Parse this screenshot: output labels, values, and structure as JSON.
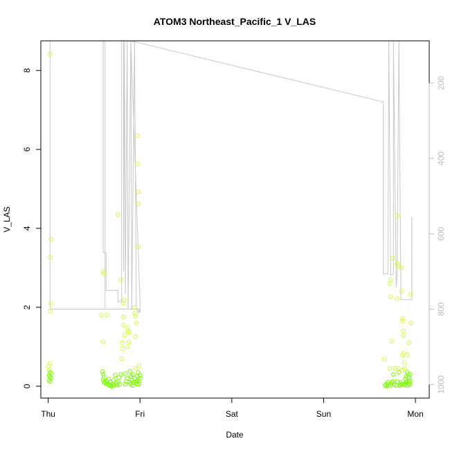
{
  "chart_data": {
    "type": "scatter",
    "title": "ATOM3 Northeast_Pacific_1 V_LAS",
    "xlabel": "Date",
    "ylabel": "V_LAS",
    "x_unit": "days from Thu 00:00",
    "x_tick_labels": [
      "Thu",
      "Fri",
      "Sat",
      "Sun",
      "Mon"
    ],
    "x_ticks": [
      0,
      1,
      2,
      3,
      4
    ],
    "xlim": [
      -0.08,
      4.15
    ],
    "y_ticks": [
      0,
      2,
      4,
      6,
      8
    ],
    "ylim": [
      -0.3,
      8.75
    ],
    "right_axis": {
      "label": "",
      "ticks": [
        200,
        400,
        600,
        800,
        1000
      ],
      "lim": [
        1036,
        88
      ],
      "reversed": true,
      "color": "#bdbdbd"
    },
    "grid": false,
    "legend": "none",
    "series": [
      {
        "type": "scatter",
        "marker": "open-circle",
        "color_low": "#7cfc00",
        "color_high": "#ccff33",
        "points": [
          [
            0.02,
            8.42
          ],
          [
            0.03,
            3.72
          ],
          [
            0.02,
            3.27
          ],
          [
            0.03,
            2.1
          ],
          [
            0.02,
            1.9
          ],
          [
            0.02,
            0.58
          ],
          [
            0.0,
            0.5
          ],
          [
            0.01,
            0.42
          ],
          [
            0.02,
            0.36
          ],
          [
            0.03,
            0.32
          ],
          [
            0.01,
            0.28
          ],
          [
            0.02,
            0.24
          ],
          [
            0.03,
            0.2
          ],
          [
            0.01,
            0.15
          ],
          [
            0.02,
            0.12
          ],
          [
            0.6,
            2.9
          ],
          [
            0.61,
            2.85
          ],
          [
            0.79,
            2.7
          ],
          [
            0.76,
            4.35
          ],
          [
            0.58,
            1.8
          ],
          [
            0.64,
            1.8
          ],
          [
            0.6,
            1.13
          ],
          [
            0.59,
            0.37
          ],
          [
            0.6,
            0.3
          ],
          [
            0.61,
            0.22
          ],
          [
            0.6,
            0.16
          ],
          [
            0.61,
            0.1
          ],
          [
            0.62,
            0.08
          ],
          [
            0.63,
            0.12
          ],
          [
            0.64,
            0.05
          ],
          [
            0.66,
            0.18
          ],
          [
            0.66,
            0.04
          ],
          [
            0.67,
            0.02
          ],
          [
            0.68,
            0.1
          ],
          [
            0.69,
            0.0
          ],
          [
            0.7,
            0.05
          ],
          [
            0.71,
            0.15
          ],
          [
            0.72,
            0.02
          ],
          [
            0.73,
            0.28
          ],
          [
            0.74,
            0.08
          ],
          [
            0.75,
            0.03
          ],
          [
            0.76,
            0.12
          ],
          [
            0.77,
            0.22
          ],
          [
            0.78,
            0.05
          ],
          [
            0.79,
            0.3
          ],
          [
            0.8,
            0.7
          ],
          [
            0.81,
            0.95
          ],
          [
            0.81,
            1.1
          ],
          [
            0.82,
            1.55
          ],
          [
            0.82,
            1.75
          ],
          [
            0.82,
            2.1
          ],
          [
            0.83,
            2.18
          ],
          [
            0.83,
            1.3
          ],
          [
            0.84,
            0.05
          ],
          [
            0.84,
            0.32
          ],
          [
            0.85,
            0.12
          ],
          [
            0.86,
            1.0
          ],
          [
            0.86,
            0.2
          ],
          [
            0.87,
            1.4
          ],
          [
            0.87,
            1.48
          ],
          [
            0.88,
            1.12
          ],
          [
            0.88,
            1.36
          ],
          [
            0.89,
            0.38
          ],
          [
            0.89,
            0.1
          ],
          [
            0.9,
            0.25
          ],
          [
            0.9,
            0.05
          ],
          [
            0.91,
            0.15
          ],
          [
            0.92,
            0.3
          ],
          [
            0.92,
            0.02
          ],
          [
            0.93,
            0.1
          ],
          [
            0.94,
            0.2
          ],
          [
            0.94,
            1.85
          ],
          [
            0.94,
            2.0
          ],
          [
            0.95,
            1.78
          ],
          [
            0.95,
            1.25
          ],
          [
            0.95,
            0.45
          ],
          [
            0.96,
            0.08
          ],
          [
            0.96,
            1.6
          ],
          [
            0.96,
            0.12
          ],
          [
            0.97,
            0.25
          ],
          [
            0.97,
            0.05
          ],
          [
            0.98,
            0.35
          ],
          [
            0.98,
            0.15
          ],
          [
            0.99,
            0.52
          ],
          [
            0.99,
            0.05
          ],
          [
            1.0,
            0.28
          ],
          [
            1.0,
            0.2
          ],
          [
            0.97,
            6.35
          ],
          [
            0.97,
            5.63
          ],
          [
            0.98,
            4.92
          ],
          [
            0.98,
            4.62
          ],
          [
            0.98,
            3.53
          ],
          [
            3.66,
            0.68
          ],
          [
            3.67,
            0.02
          ],
          [
            3.68,
            0.05
          ],
          [
            3.69,
            0.0
          ],
          [
            3.7,
            0.1
          ],
          [
            3.71,
            0.04
          ],
          [
            3.72,
            0.45
          ],
          [
            3.73,
            0.02
          ],
          [
            3.74,
            0.08
          ],
          [
            3.75,
            0.12
          ],
          [
            3.75,
            3.25
          ],
          [
            3.73,
            2.7
          ],
          [
            3.72,
            2.6
          ],
          [
            3.73,
            2.26
          ],
          [
            3.74,
            1.14
          ],
          [
            3.76,
            0.3
          ],
          [
            3.77,
            0.05
          ],
          [
            3.78,
            0.46
          ],
          [
            3.79,
            0.02
          ],
          [
            3.8,
            0.12
          ],
          [
            3.8,
            4.32
          ],
          [
            3.8,
            3.1
          ],
          [
            3.81,
            3.05
          ],
          [
            3.8,
            2.22
          ],
          [
            3.81,
            0.45
          ],
          [
            3.82,
            0.35
          ],
          [
            3.83,
            0.06
          ],
          [
            3.84,
            0.1
          ],
          [
            3.85,
            0.04
          ],
          [
            3.85,
            2.4
          ],
          [
            3.85,
            3.0
          ],
          [
            3.86,
            1.72
          ],
          [
            3.86,
            1.65
          ],
          [
            3.87,
            1.4
          ],
          [
            3.87,
            1.28
          ],
          [
            3.86,
            0.78
          ],
          [
            3.87,
            0.82
          ],
          [
            3.88,
            0.6
          ],
          [
            3.88,
            0.45
          ],
          [
            3.89,
            0.18
          ],
          [
            3.89,
            0.05
          ],
          [
            3.9,
            0.25
          ],
          [
            3.9,
            0.12
          ],
          [
            3.91,
            0.35
          ],
          [
            3.92,
            0.3
          ],
          [
            3.92,
            0.02
          ],
          [
            3.93,
            0.1
          ],
          [
            3.93,
            0.22
          ],
          [
            3.94,
            0.15
          ],
          [
            3.94,
            0.05
          ],
          [
            3.95,
            1.6
          ],
          [
            3.95,
            2.32
          ],
          [
            3.93,
            1.1
          ],
          [
            3.91,
            0.8
          ],
          [
            3.94,
            0.3
          ],
          [
            3.9,
            0.08
          ],
          [
            3.88,
            0.03
          ],
          [
            3.83,
            0.02
          ],
          [
            3.86,
            0.4
          ]
        ]
      },
      {
        "type": "line",
        "axis": "right",
        "color": "#c8c8c8",
        "points": [
          [
            0.02,
            88
          ],
          [
            0.02,
            800
          ],
          [
            1.0,
            800
          ],
          [
            0.62,
            800
          ],
          [
            0.62,
            88
          ],
          [
            0.6,
            88
          ],
          [
            0.6,
            650
          ],
          [
            0.63,
            650
          ],
          [
            0.63,
            750
          ],
          [
            0.76,
            750
          ],
          [
            0.76,
            780
          ],
          [
            0.8,
            780
          ],
          [
            0.8,
            88
          ],
          [
            0.82,
            88
          ],
          [
            0.82,
            700
          ],
          [
            0.83,
            88
          ],
          [
            0.84,
            760
          ],
          [
            0.86,
            88
          ],
          [
            0.87,
            800
          ],
          [
            0.9,
            88
          ],
          [
            0.91,
            800
          ],
          [
            0.94,
            88
          ],
          [
            0.96,
            800
          ],
          [
            0.98,
            810
          ],
          [
            0.99,
            800
          ],
          [
            1.0,
            810
          ],
          [
            1.0,
            780
          ],
          [
            0.9,
            88
          ],
          [
            3.65,
            250
          ],
          [
            3.65,
            706
          ],
          [
            3.7,
            706
          ],
          [
            3.71,
            88
          ],
          [
            3.73,
            710
          ],
          [
            3.76,
            706
          ],
          [
            3.76,
            88
          ],
          [
            3.79,
            740
          ],
          [
            3.8,
            706
          ],
          [
            3.82,
            88
          ],
          [
            3.84,
            740
          ],
          [
            3.84,
            775
          ],
          [
            3.96,
            775
          ],
          [
            3.96,
            555
          ]
        ]
      }
    ]
  }
}
